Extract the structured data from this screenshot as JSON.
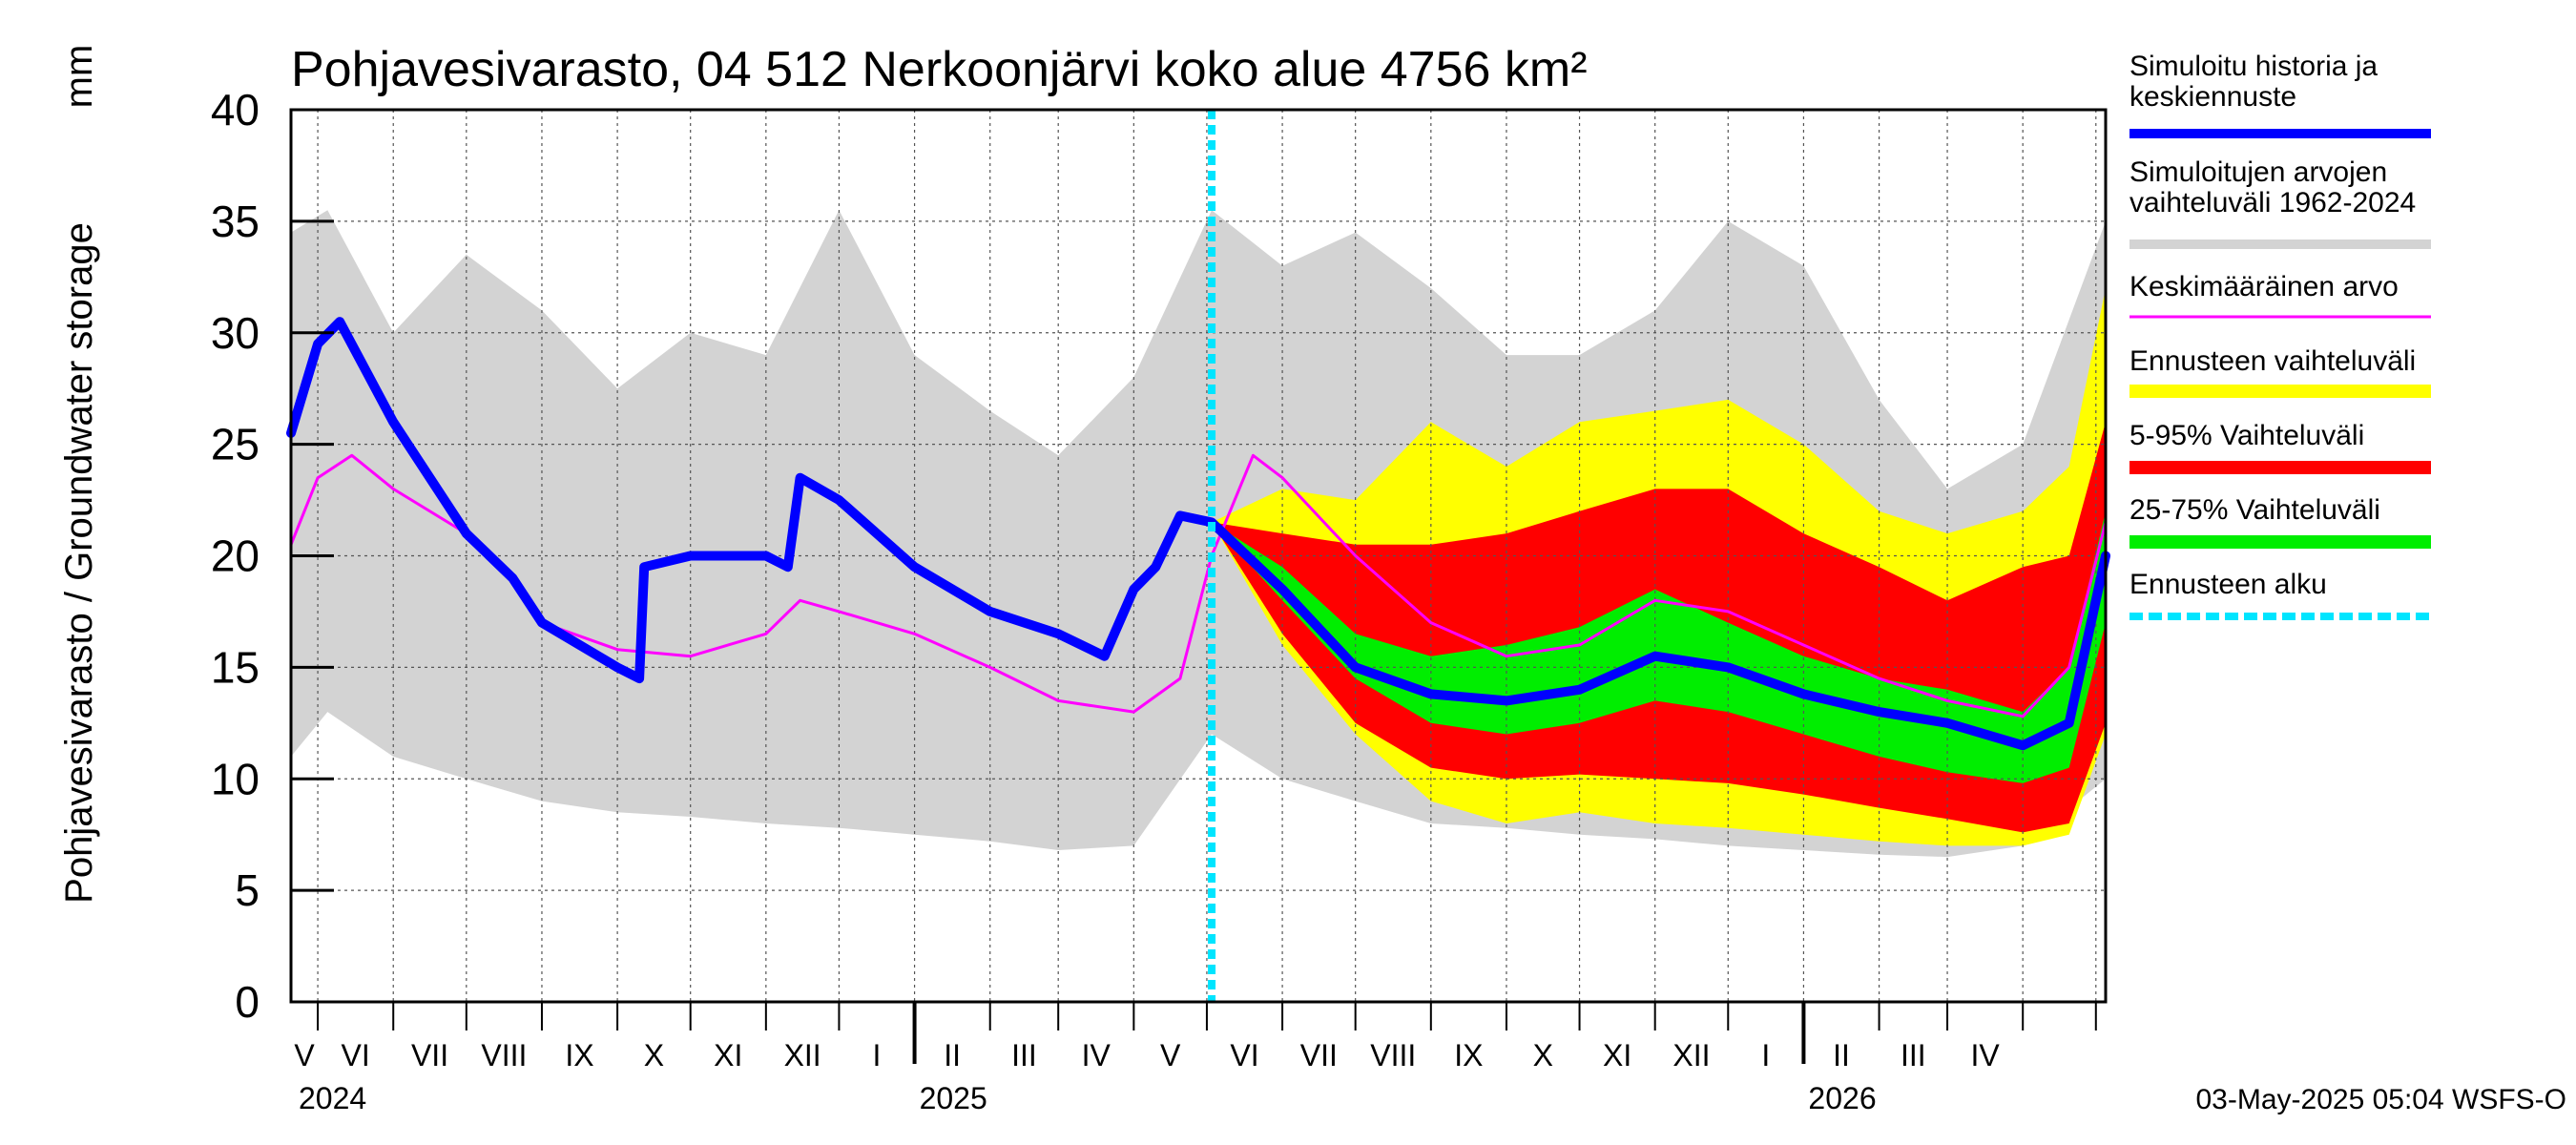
{
  "chart_data": {
    "type": "area",
    "title": "Pohjavesivarasto, 04 512 Nerkoonjärvi koko alue 4756 km²",
    "ylabel": "Pohjavesivarasto / Groundwater storage",
    "yunit": "mm",
    "ylim": [
      0,
      40
    ],
    "yticks": [
      0,
      5,
      10,
      15,
      20,
      25,
      30,
      35,
      40
    ],
    "x_start": "2024-04-20",
    "x_end": "2026-05-05",
    "forecast_start": "2025-05-03",
    "grid": true,
    "months": [
      "V",
      "VI",
      "VII",
      "VIII",
      "IX",
      "X",
      "XI",
      "XII",
      "I",
      "II",
      "III",
      "IV",
      "V",
      "VI",
      "VII",
      "VIII",
      "IX",
      "X",
      "XI",
      "XII",
      "I",
      "II",
      "III",
      "IV"
    ],
    "years": [
      "2024",
      "2025",
      "2026"
    ],
    "legend": [
      {
        "label": "Simuloitu historia ja keskiennuste",
        "color": "#0000ff"
      },
      {
        "label": "Simuloitujen arvojen vaihteluväli 1962-2024",
        "color": "#d3d3d3"
      },
      {
        "label": "Keskimääräinen arvo",
        "color": "#ff00ff"
      },
      {
        "label": "Ennusteen vaihteluväli",
        "color": "#ffff00"
      },
      {
        "label": "5-95% Vaihteluväli",
        "color": "#ff0000"
      },
      {
        "label": "25-75% Vaihteluväli",
        "color": "#00ee00"
      },
      {
        "label": "Ennusteen alku",
        "color": "#00e5ff"
      }
    ],
    "series": [
      {
        "name": "hist_range_upper",
        "dates": [
          "2024-04-20",
          "2024-05-05",
          "2024-06-01",
          "2024-07-01",
          "2024-08-01",
          "2024-09-01",
          "2024-10-01",
          "2024-11-01",
          "2024-12-01",
          "2025-01-01",
          "2025-02-01",
          "2025-03-01",
          "2025-04-01",
          "2025-05-03",
          "2025-06-01",
          "2025-07-01",
          "2025-08-01",
          "2025-09-01",
          "2025-10-01",
          "2025-11-01",
          "2025-12-01",
          "2026-01-01",
          "2026-02-01",
          "2026-03-01",
          "2026-04-01",
          "2026-05-05"
        ],
        "values": [
          34.5,
          35.5,
          30,
          33.5,
          31,
          27.5,
          30,
          29,
          35.5,
          29,
          26.5,
          24.5,
          28,
          35.5,
          33,
          34.5,
          32,
          29,
          29,
          31,
          35,
          33,
          27,
          23,
          25,
          35
        ]
      },
      {
        "name": "hist_range_lower",
        "dates": [
          "2024-04-20",
          "2024-05-05",
          "2024-06-01",
          "2024-07-01",
          "2024-08-01",
          "2024-09-01",
          "2024-10-01",
          "2024-11-01",
          "2024-12-01",
          "2025-01-01",
          "2025-02-01",
          "2025-03-01",
          "2025-04-01",
          "2025-05-03",
          "2025-06-01",
          "2025-07-01",
          "2025-08-01",
          "2025-09-01",
          "2025-10-01",
          "2025-11-01",
          "2025-12-01",
          "2026-01-01",
          "2026-02-01",
          "2026-03-01",
          "2026-04-01",
          "2026-05-05"
        ],
        "values": [
          11,
          13,
          11,
          10,
          9,
          8.5,
          8.3,
          8,
          7.8,
          7.5,
          7.2,
          6.8,
          7,
          12,
          10,
          9,
          8,
          7.8,
          7.5,
          7.3,
          7,
          6.8,
          6.6,
          6.5,
          7,
          10
        ]
      },
      {
        "name": "forecast_range_upper",
        "dates": [
          "2025-05-03",
          "2025-06-01",
          "2025-07-01",
          "2025-08-01",
          "2025-09-01",
          "2025-10-01",
          "2025-11-01",
          "2025-12-01",
          "2026-01-01",
          "2026-02-01",
          "2026-03-01",
          "2026-04-01",
          "2026-04-20",
          "2026-05-05"
        ],
        "values": [
          21.5,
          23,
          22.5,
          26,
          24,
          26,
          26.5,
          27,
          25,
          22,
          21,
          22,
          24,
          32
        ]
      },
      {
        "name": "forecast_range_lower",
        "dates": [
          "2025-05-03",
          "2025-06-01",
          "2025-07-01",
          "2025-08-01",
          "2025-09-01",
          "2025-10-01",
          "2025-11-01",
          "2025-12-01",
          "2026-01-01",
          "2026-02-01",
          "2026-03-01",
          "2026-04-01",
          "2026-04-20",
          "2026-05-05"
        ],
        "values": [
          21.5,
          16,
          12,
          9,
          8,
          8.5,
          8,
          7.8,
          7.5,
          7.2,
          7,
          7,
          7.5,
          12
        ]
      },
      {
        "name": "p5_95_upper",
        "dates": [
          "2025-05-03",
          "2025-06-01",
          "2025-07-01",
          "2025-08-01",
          "2025-09-01",
          "2025-10-01",
          "2025-11-01",
          "2025-12-01",
          "2026-01-01",
          "2026-02-01",
          "2026-03-01",
          "2026-04-01",
          "2026-04-20",
          "2026-05-05"
        ],
        "values": [
          21.5,
          21,
          20.5,
          20.5,
          21,
          22,
          23,
          23,
          21,
          19.5,
          18,
          19.5,
          20,
          26
        ]
      },
      {
        "name": "p5_95_lower",
        "dates": [
          "2025-05-03",
          "2025-06-01",
          "2025-07-01",
          "2025-08-01",
          "2025-09-01",
          "2025-10-01",
          "2025-11-01",
          "2025-12-01",
          "2026-01-01",
          "2026-02-01",
          "2026-03-01",
          "2026-04-01",
          "2026-04-20",
          "2026-05-05"
        ],
        "values": [
          21.5,
          16.5,
          12.5,
          10.5,
          10,
          10.2,
          10,
          9.8,
          9.3,
          8.7,
          8.2,
          7.6,
          8,
          12.5
        ]
      },
      {
        "name": "p25_75_upper",
        "dates": [
          "2025-05-03",
          "2025-06-01",
          "2025-07-01",
          "2025-08-01",
          "2025-09-01",
          "2025-10-01",
          "2025-11-01",
          "2025-12-01",
          "2026-01-01",
          "2026-02-01",
          "2026-03-01",
          "2026-04-01",
          "2026-04-20",
          "2026-05-05"
        ],
        "values": [
          21.5,
          19.5,
          16.5,
          15.5,
          16,
          16.8,
          18.5,
          17,
          15.5,
          14.5,
          14,
          13,
          15,
          22
        ]
      },
      {
        "name": "p25_75_lower",
        "dates": [
          "2025-05-03",
          "2025-06-01",
          "2025-07-01",
          "2025-08-01",
          "2025-09-01",
          "2025-10-01",
          "2025-11-01",
          "2025-12-01",
          "2026-01-01",
          "2026-02-01",
          "2026-03-01",
          "2026-04-01",
          "2026-04-20",
          "2026-05-05"
        ],
        "values": [
          21.5,
          18,
          14.5,
          12.5,
          12,
          12.5,
          13.5,
          13,
          12,
          11,
          10.3,
          9.8,
          10.5,
          17
        ]
      },
      {
        "name": "mean",
        "dates": [
          "2024-04-20",
          "2024-05-01",
          "2024-05-15",
          "2024-06-01",
          "2024-07-01",
          "2024-07-20",
          "2024-08-01",
          "2024-09-01",
          "2024-10-01",
          "2024-11-01",
          "2024-11-15",
          "2024-12-01",
          "2025-01-01",
          "2025-02-01",
          "2025-03-01",
          "2025-04-01",
          "2025-04-20",
          "2025-05-03",
          "2025-05-20",
          "2025-06-01",
          "2025-07-01",
          "2025-08-01",
          "2025-09-01",
          "2025-10-01",
          "2025-11-01",
          "2025-12-01",
          "2026-01-01",
          "2026-02-01",
          "2026-03-01",
          "2026-04-01",
          "2026-04-20",
          "2026-05-05"
        ],
        "values": [
          20.5,
          23.5,
          24.5,
          23,
          21,
          19,
          17,
          15.8,
          15.5,
          16.5,
          18,
          17.5,
          16.5,
          15,
          13.5,
          13,
          14.5,
          20,
          24.5,
          23.5,
          20,
          17,
          15.5,
          16,
          18,
          17.5,
          16,
          14.5,
          13.5,
          12.8,
          15,
          21.5
        ]
      },
      {
        "name": "simulated_history_and_median_forecast",
        "dates": [
          "2024-04-20",
          "2024-05-01",
          "2024-05-10",
          "2024-06-01",
          "2024-07-01",
          "2024-07-20",
          "2024-08-01",
          "2024-09-01",
          "2024-09-10",
          "2024-09-12",
          "2024-10-01",
          "2024-11-01",
          "2024-11-10",
          "2024-11-15",
          "2024-12-01",
          "2025-01-01",
          "2025-02-01",
          "2025-03-01",
          "2025-03-20",
          "2025-04-01",
          "2025-04-10",
          "2025-04-20",
          "2025-05-03",
          "2025-06-01",
          "2025-07-01",
          "2025-08-01",
          "2025-09-01",
          "2025-10-01",
          "2025-11-01",
          "2025-12-01",
          "2026-01-01",
          "2026-02-01",
          "2026-03-01",
          "2026-04-01",
          "2026-04-20",
          "2026-05-05"
        ],
        "values": [
          25.5,
          29.5,
          30.5,
          26,
          21,
          19,
          17,
          15,
          14.5,
          19.5,
          20,
          20,
          19.5,
          23.5,
          22.5,
          19.5,
          17.5,
          16.5,
          15.5,
          18.5,
          19.5,
          21.8,
          21.5,
          18.5,
          15,
          13.8,
          13.5,
          14,
          15.5,
          15,
          13.8,
          13,
          12.5,
          11.5,
          12.5,
          20
        ]
      }
    ]
  },
  "timestamp": "03-May-2025 05:04 WSFS-O"
}
